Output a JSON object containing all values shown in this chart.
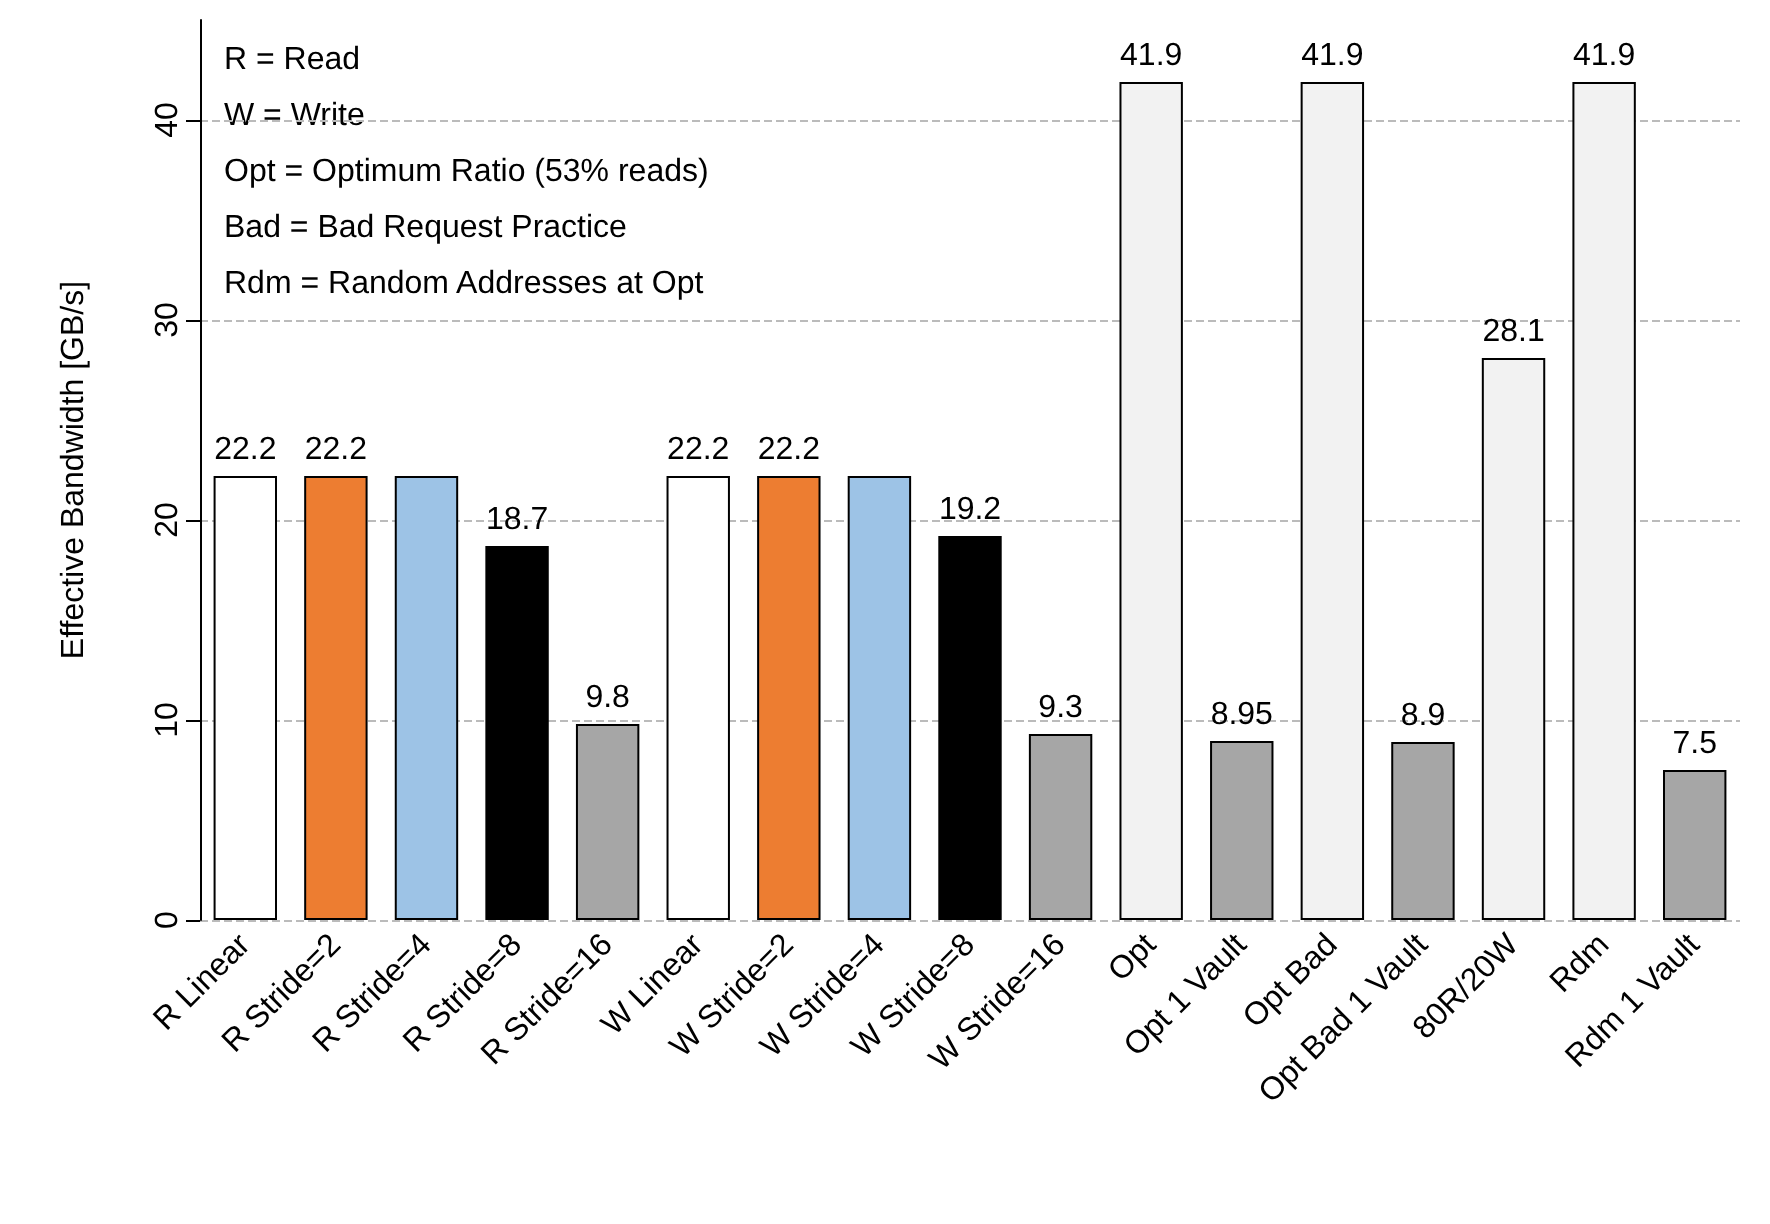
{
  "chart_data": {
    "type": "bar",
    "ylabel": "Effective Bandwidth [GB/s]",
    "categories": [
      "R Linear",
      "R Stride=2",
      "R Stride=4",
      "R Stride=8",
      "R Stride=16",
      "W Linear",
      "W Stride=2",
      "W Stride=4",
      "W Stride=8",
      "W Stride=16",
      "Opt",
      "Opt 1 Vault",
      "Opt Bad",
      "Opt Bad 1 Vault",
      "80R/20W",
      "Rdm",
      "Rdm 1 Vault"
    ],
    "values": [
      22.2,
      22.2,
      22.2,
      18.7,
      9.8,
      22.2,
      22.2,
      22.2,
      19.2,
      9.3,
      41.9,
      8.95,
      41.9,
      8.9,
      28.1,
      41.9,
      7.5
    ],
    "colors": [
      "#ffffff",
      "#ed7d31",
      "#9dc3e6",
      "#000000",
      "#a6a6a6",
      "#ffffff",
      "#ed7d31",
      "#9dc3e6",
      "#000000",
      "#a6a6a6",
      "#f2f2f2",
      "#a6a6a6",
      "#f2f2f2",
      "#a6a6a6",
      "#f2f2f2",
      "#f2f2f2",
      "#a6a6a6"
    ],
    "value_labels": [
      "22.2",
      "22.2",
      null,
      "18.7",
      "9.8",
      "22.2",
      "22.2",
      null,
      "19.2",
      "9.3",
      "41.9",
      "8.95",
      "41.9",
      "8.9",
      "28.1",
      "41.9",
      "7.5"
    ],
    "ylim": [
      0,
      45
    ],
    "yticks": [
      0,
      10,
      20,
      30,
      40
    ],
    "grid": "y",
    "annotations": [
      "R = Read",
      "W = Write",
      "Opt = Optimum Ratio (53% reads)",
      "Bad = Bad Request Practice",
      "Rdm = Random Addresses at Opt"
    ]
  }
}
